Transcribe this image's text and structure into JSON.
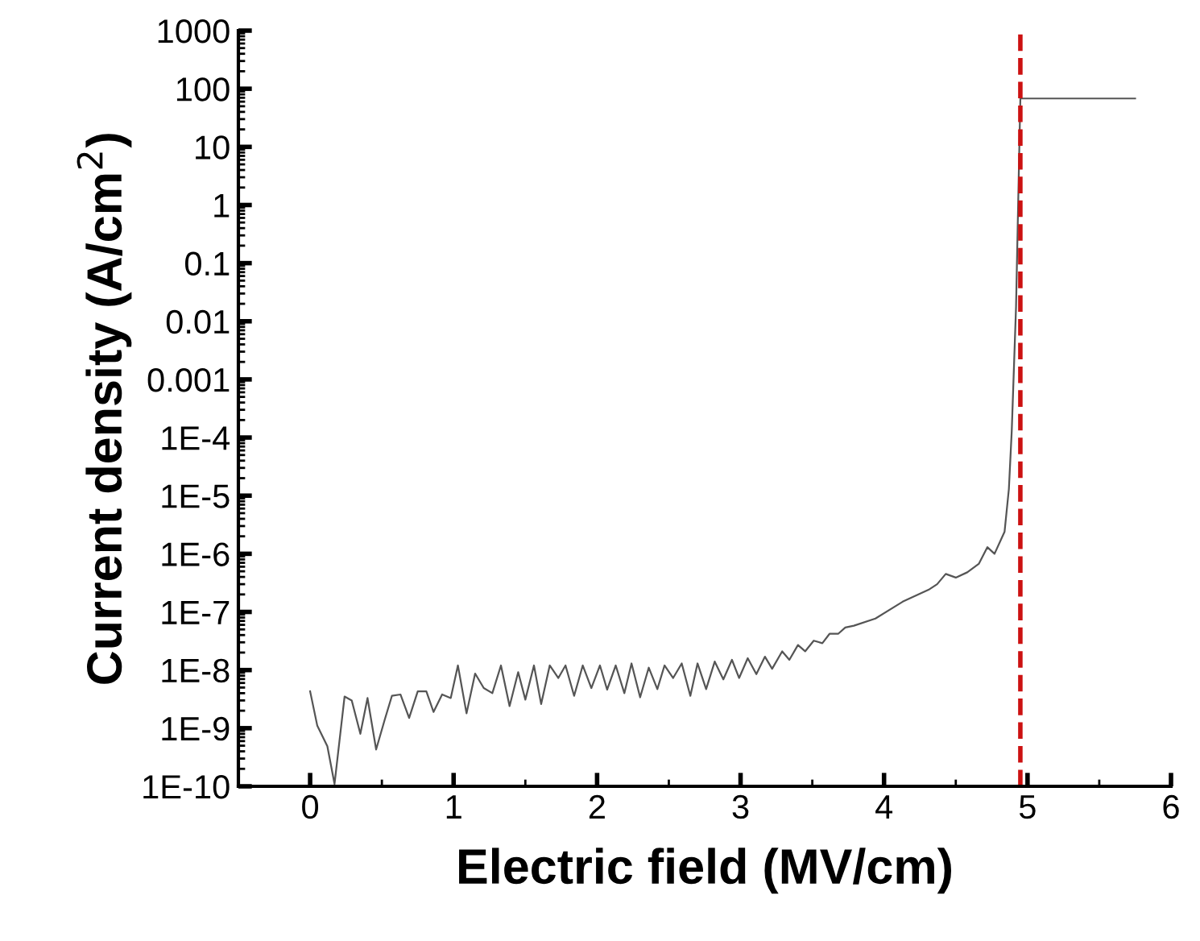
{
  "chart_data": {
    "type": "line",
    "xlabel": "Electric field (MV/cm)",
    "ylabel": "Current density (A/cm$^{2}$)",
    "log": "y",
    "xlim": [
      -0.5,
      6
    ],
    "xticks": [
      0,
      1,
      2,
      3,
      4,
      5,
      6
    ],
    "ylim": [
      1e-10,
      1000
    ],
    "yticks": [
      {
        "value": 1e-10,
        "label": "1E-10"
      },
      {
        "value": 1e-09,
        "label": "1E-9"
      },
      {
        "value": 1e-08,
        "label": "1E-8"
      },
      {
        "value": 1e-07,
        "label": "1E-7"
      },
      {
        "value": 1e-06,
        "label": "1E-6"
      },
      {
        "value": 1e-05,
        "label": "1E-5"
      },
      {
        "value": 0.0001,
        "label": "1E-4"
      },
      0.001,
      0.01,
      0.1,
      1,
      10,
      100,
      1000
    ],
    "grid": false,
    "legend": false,
    "marker": "none",
    "line_style": "solid",
    "ref_lines": [
      {
        "axis": "x",
        "value": 4.95,
        "color": "#cc1111",
        "line_style": "dashed"
      }
    ],
    "series": [
      {
        "color": "#555555",
        "x": [
          0,
          0.05,
          0.12,
          0.17,
          0.24,
          0.29,
          0.35,
          0.4,
          0.46,
          0.52,
          0.57,
          0.63,
          0.69,
          0.75,
          0.81,
          0.86,
          0.92,
          0.98,
          1.03,
          1.09,
          1.15,
          1.21,
          1.27,
          1.33,
          1.39,
          1.45,
          1.5,
          1.56,
          1.61,
          1.67,
          1.73,
          1.78,
          1.84,
          1.9,
          1.96,
          2.02,
          2.07,
          2.13,
          2.19,
          2.24,
          2.3,
          2.36,
          2.42,
          2.47,
          2.53,
          2.59,
          2.65,
          2.7,
          2.76,
          2.82,
          2.88,
          2.94,
          2.99,
          3.05,
          3.11,
          3.17,
          3.22,
          3.29,
          3.34,
          3.4,
          3.45,
          3.51,
          3.57,
          3.62,
          3.68,
          3.73,
          3.79,
          3.94,
          4.13,
          4.31,
          4.37,
          4.43,
          4.5,
          4.58,
          4.66,
          4.72,
          4.77,
          4.84,
          4.87,
          4.89,
          4.92,
          4.94,
          4.95,
          5.75
        ],
        "values": [
          4.3e-09,
          1.1e-09,
          4.9e-10,
          1.1e-10,
          3.5e-09,
          3e-09,
          8e-10,
          3.3e-09,
          4.3e-10,
          1.4e-09,
          3.6e-09,
          3.8e-09,
          1.5e-09,
          4.3e-09,
          4.3e-09,
          1.9e-09,
          3.8e-09,
          3.3e-09,
          1.2e-08,
          1.8e-09,
          8.7e-09,
          4.9e-09,
          4e-09,
          1.2e-08,
          2.4e-09,
          9.2e-09,
          3.1e-09,
          1.2e-08,
          2.6e-09,
          1.2e-08,
          7.3e-09,
          1.2e-08,
          3.6e-09,
          1.2e-08,
          4.9e-09,
          1.2e-08,
          4.6e-09,
          1.2e-08,
          4e-09,
          1.3e-08,
          3.4e-09,
          1.1e-08,
          4.7e-09,
          1.2e-08,
          7.3e-09,
          1.3e-08,
          3.6e-09,
          1.3e-08,
          4.7e-09,
          1.4e-08,
          6.9e-09,
          1.5e-08,
          7.3e-09,
          1.6e-08,
          8.5e-09,
          1.7e-08,
          1.05e-08,
          2.1e-08,
          1.5e-08,
          2.7e-08,
          2.1e-08,
          3.2e-08,
          2.9e-08,
          4.2e-08,
          4.2e-08,
          5.4e-08,
          5.8e-08,
          7.7e-08,
          1.5e-07,
          2.4e-07,
          3e-07,
          4.5e-07,
          3.9e-07,
          4.8e-07,
          6.7e-07,
          1.3e-06,
          1e-06,
          2.4e-06,
          1.3e-05,
          0.00013,
          0.018,
          4.4,
          68,
          68
        ]
      }
    ]
  }
}
